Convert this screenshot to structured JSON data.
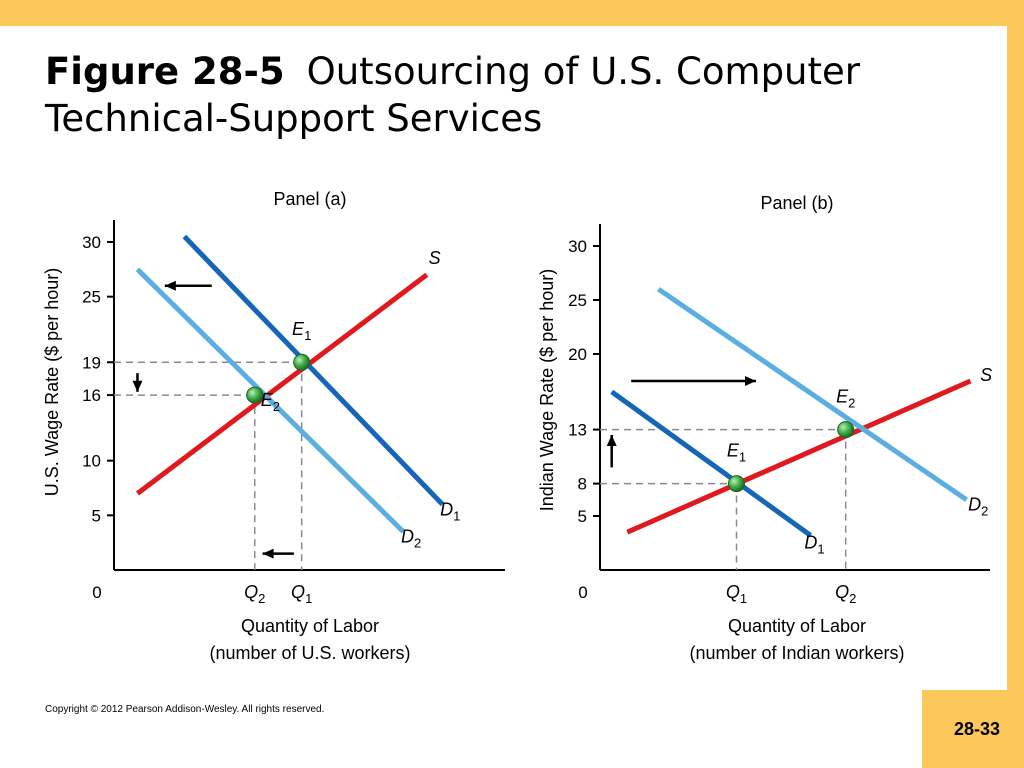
{
  "slide": {
    "title_bold": "Figure 28-5",
    "title_rest": "Outsourcing of U.S. Computer Technical-Support Services",
    "copyright": "Copyright © 2012 Pearson Addison-Wesley. All rights reserved.",
    "page_number": "28-33"
  },
  "colors": {
    "supply": "#e0191f",
    "demand_initial": "#1565b8",
    "demand_new": "#5aaee0",
    "point": "#3fae49",
    "guide": "#8a8a8a",
    "border": "#fdc85a"
  },
  "chart_data": [
    {
      "type": "line",
      "title": "Panel (a)",
      "ylabel": "U.S. Wage Rate ($ per hour)",
      "xlabel": "Quantity of Labor",
      "xlabel2": "(number of U.S. workers)",
      "origin_label": "0",
      "ylim": [
        0,
        30
      ],
      "xlim": [
        0,
        10
      ],
      "y_ticks": [
        5,
        10,
        16,
        19,
        25,
        30
      ],
      "x_ticks": [
        {
          "x": 3.6,
          "label": "Q",
          "sub": "2"
        },
        {
          "x": 4.8,
          "label": "Q",
          "sub": "1"
        }
      ],
      "series": [
        {
          "name": "S",
          "sub": "",
          "role": "supply",
          "points": [
            [
              0.6,
              7
            ],
            [
              8,
              27
            ]
          ],
          "label_at": [
            8.2,
            28
          ]
        },
        {
          "name": "D",
          "sub": "1",
          "role": "demand_initial",
          "points": [
            [
              1.8,
              30.5
            ],
            [
              8.4,
              6
            ]
          ],
          "label_at": [
            8.6,
            5
          ]
        },
        {
          "name": "D",
          "sub": "2",
          "role": "demand_new",
          "points": [
            [
              0.6,
              27.5
            ],
            [
              7.4,
              3.5
            ]
          ],
          "label_at": [
            7.6,
            2.5
          ]
        }
      ],
      "equilibria": [
        {
          "label": "E",
          "sub": "1",
          "x": 4.8,
          "y": 19,
          "label_at": [
            4.8,
            21.5
          ]
        },
        {
          "label": "E",
          "sub": "2",
          "x": 3.6,
          "y": 16,
          "label_at": [
            4.0,
            15
          ]
        }
      ],
      "arrows": [
        {
          "from": [
            2.5,
            26
          ],
          "to": [
            1.3,
            26
          ]
        },
        {
          "from": [
            0.6,
            18
          ],
          "to": [
            0.6,
            16.3
          ]
        },
        {
          "from": [
            4.6,
            1.5
          ],
          "to": [
            3.8,
            1.5
          ]
        }
      ]
    },
    {
      "type": "line",
      "title": "Panel (b)",
      "ylabel": "Indian Wage Rate ($ per hour)",
      "xlabel": "Quantity of Labor",
      "xlabel2": "(number of Indian workers)",
      "origin_label": "0",
      "ylim": [
        0,
        30
      ],
      "xlim": [
        0,
        10
      ],
      "y_ticks": [
        5,
        8,
        13,
        20,
        25,
        30
      ],
      "x_ticks": [
        {
          "x": 3.5,
          "label": "Q",
          "sub": "1"
        },
        {
          "x": 6.3,
          "label": "Q",
          "sub": "2"
        }
      ],
      "series": [
        {
          "name": "S",
          "sub": "",
          "role": "supply",
          "points": [
            [
              0.7,
              3.5
            ],
            [
              9.5,
              17.5
            ]
          ],
          "label_at": [
            9.9,
            17.5
          ]
        },
        {
          "name": "D",
          "sub": "1",
          "role": "demand_initial",
          "points": [
            [
              0.3,
              16.5
            ],
            [
              5.4,
              3.2
            ]
          ],
          "label_at": [
            5.5,
            2
          ]
        },
        {
          "name": "D",
          "sub": "2",
          "role": "demand_new",
          "points": [
            [
              1.5,
              26
            ],
            [
              9.4,
              6.5
            ]
          ],
          "label_at": [
            9.7,
            5.5
          ]
        }
      ],
      "equilibria": [
        {
          "label": "E",
          "sub": "1",
          "x": 3.5,
          "y": 8,
          "label_at": [
            3.5,
            10.5
          ]
        },
        {
          "label": "E",
          "sub": "2",
          "x": 6.3,
          "y": 13,
          "label_at": [
            6.3,
            15.5
          ]
        }
      ],
      "arrows": [
        {
          "from": [
            0.8,
            17.5
          ],
          "to": [
            4.0,
            17.5
          ]
        },
        {
          "from": [
            0.3,
            9.5
          ],
          "to": [
            0.3,
            12.5
          ]
        }
      ]
    }
  ]
}
